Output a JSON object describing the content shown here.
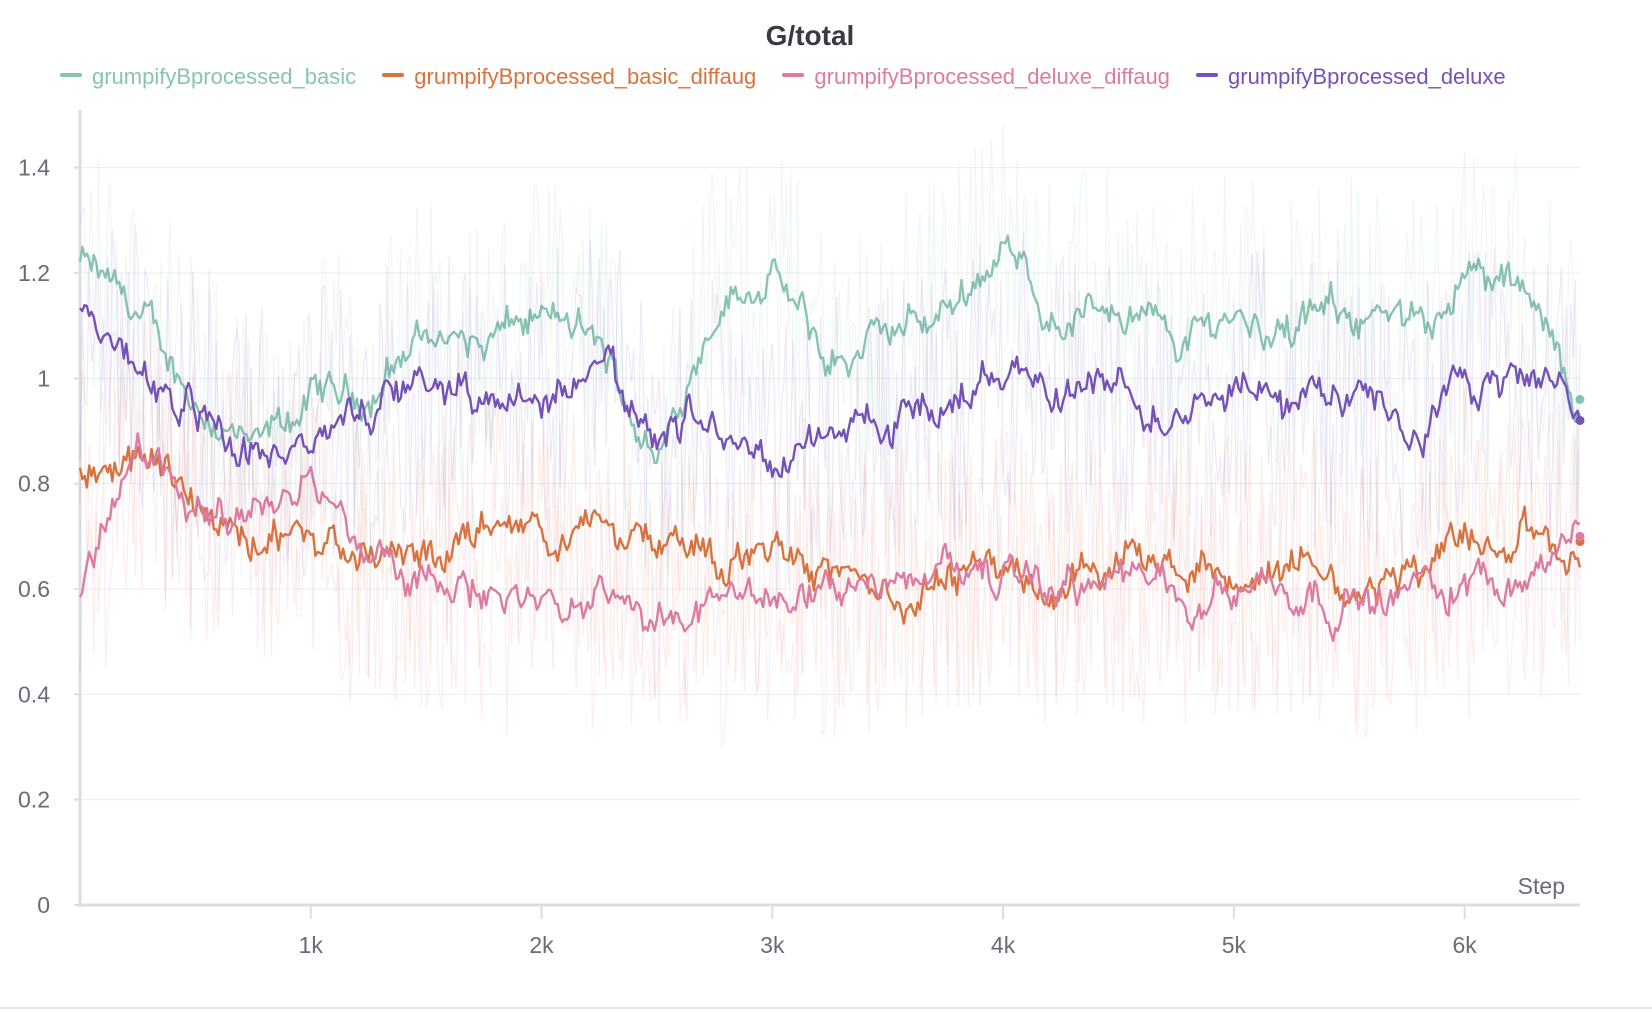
{
  "chart_data": {
    "type": "line",
    "title": "G/total",
    "xlabel": "Step",
    "ylabel": "",
    "xlim": [
      0,
      6500
    ],
    "ylim": [
      0,
      1.5
    ],
    "grid": true,
    "legend_position": "top",
    "x_ticks": [
      1000,
      2000,
      3000,
      4000,
      5000,
      6000
    ],
    "x_tick_labels": [
      "1k",
      "2k",
      "3k",
      "4k",
      "5k",
      "6k"
    ],
    "y_ticks": [
      0,
      0.2,
      0.4,
      0.6,
      0.8,
      1,
      1.2,
      1.4
    ],
    "y_tick_labels": [
      "0",
      "0.2",
      "0.4",
      "0.6",
      "0.8",
      "1",
      "1.2",
      "1.4"
    ],
    "x": [
      0,
      250,
      500,
      750,
      1000,
      1250,
      1500,
      1750,
      2000,
      2250,
      2500,
      2750,
      3000,
      3250,
      3500,
      3750,
      4000,
      4250,
      4500,
      4750,
      5000,
      5250,
      5500,
      5750,
      6000,
      6250,
      6500
    ],
    "series": [
      {
        "name": "grumpifyBprocessed_basic",
        "color": "#87c4b1",
        "values": [
          1.22,
          1.12,
          0.96,
          0.85,
          0.96,
          0.97,
          1.09,
          1.06,
          1.12,
          1.06,
          0.84,
          1.14,
          1.2,
          1.02,
          1.08,
          1.13,
          1.25,
          1.1,
          1.15,
          1.07,
          1.13,
          1.08,
          1.14,
          1.08,
          1.2,
          1.16,
          0.96
        ]
      },
      {
        "name": "grumpifyBprocessed_basic_diffaug",
        "color": "#d9733d",
        "values": [
          0.8,
          0.88,
          0.78,
          0.73,
          0.7,
          0.63,
          0.66,
          0.72,
          0.7,
          0.71,
          0.66,
          0.64,
          0.68,
          0.65,
          0.6,
          0.62,
          0.66,
          0.6,
          0.64,
          0.66,
          0.63,
          0.66,
          0.61,
          0.63,
          0.71,
          0.7,
          0.69
        ]
      },
      {
        "name": "grumpifyBprocessed_deluxe_diffaug",
        "color": "#dd7ba0",
        "values": [
          0.6,
          0.87,
          0.73,
          0.76,
          0.8,
          0.66,
          0.6,
          0.6,
          0.58,
          0.6,
          0.57,
          0.54,
          0.6,
          0.59,
          0.58,
          0.64,
          0.64,
          0.6,
          0.62,
          0.59,
          0.62,
          0.6,
          0.58,
          0.6,
          0.62,
          0.64,
          0.7
        ]
      },
      {
        "name": "grumpifyBprocessed_deluxe",
        "color": "#7552b8",
        "values": [
          1.12,
          1.02,
          0.96,
          0.86,
          0.9,
          0.93,
          1.0,
          0.96,
          0.95,
          1.04,
          0.88,
          0.92,
          0.82,
          0.9,
          0.93,
          0.95,
          1.03,
          0.97,
          0.98,
          0.92,
          1.0,
          0.95,
          0.96,
          0.9,
          0.98,
          1.0,
          0.92
        ]
      }
    ]
  }
}
